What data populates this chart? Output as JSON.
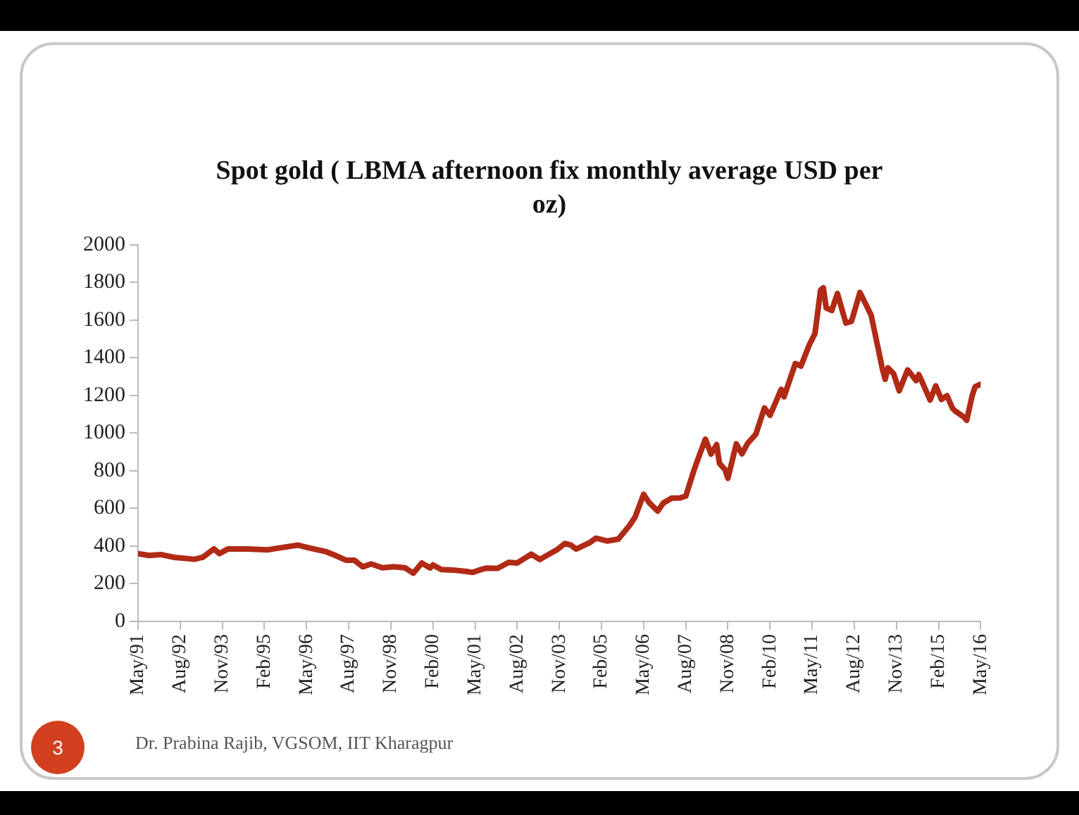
{
  "chart_data": {
    "type": "line",
    "title": "Spot gold ( LBMA afternoon fix  monthly average USD per oz)",
    "annotations": [
      "Dr. Prabina Rajib, VGSOM, IIT Kharagpur",
      "3"
    ],
    "x": [
      "1991-05",
      "1991-09",
      "1992-01",
      "1992-06",
      "1993-01",
      "1993-04",
      "1993-08",
      "1993-10",
      "1994-01",
      "1994-08",
      "1995-03",
      "1995-06",
      "1996-02",
      "1996-06",
      "1996-12",
      "1997-03",
      "1997-07",
      "1997-10",
      "1998-01",
      "1998-04",
      "1998-08",
      "1998-12",
      "1999-04",
      "1999-07",
      "1999-10",
      "2000-01",
      "2000-02",
      "2000-05",
      "2000-09",
      "2001-02",
      "2001-04",
      "2001-06",
      "2001-09",
      "2002-01",
      "2002-05",
      "2002-08",
      "2003-01",
      "2003-04",
      "2003-06",
      "2003-10",
      "2004-01",
      "2004-03",
      "2004-05",
      "2004-10",
      "2004-12",
      "2005-04",
      "2005-08",
      "2005-12",
      "2006-02",
      "2006-05",
      "2006-07",
      "2006-10",
      "2006-12",
      "2007-03",
      "2007-06",
      "2007-08",
      "2007-11",
      "2008-01",
      "2008-03",
      "2008-05",
      "2008-07",
      "2008-08",
      "2008-10",
      "2008-11",
      "2009-02",
      "2009-04",
      "2009-06",
      "2009-09",
      "2009-12",
      "2010-02",
      "2010-06",
      "2010-07",
      "2010-11",
      "2011-01",
      "2011-04",
      "2011-06",
      "2011-08",
      "2011-09",
      "2011-10",
      "2011-12",
      "2012-02",
      "2012-05",
      "2012-07",
      "2012-10",
      "2012-12",
      "2013-02",
      "2013-04",
      "2013-06",
      "2013-07",
      "2013-08",
      "2013-10",
      "2013-12",
      "2014-03",
      "2014-06",
      "2014-07",
      "2014-11",
      "2015-01",
      "2015-03",
      "2015-05",
      "2015-07",
      "2015-08",
      "2015-11",
      "2015-12",
      "2016-02",
      "2016-03",
      "2016-05"
    ],
    "series": [
      {
        "color": "#b02a16",
        "values": [
          360,
          350,
          355,
          340,
          330,
          340,
          385,
          360,
          385,
          385,
          380,
          387,
          405,
          390,
          370,
          352,
          325,
          325,
          290,
          305,
          285,
          290,
          285,
          256,
          310,
          284,
          300,
          275,
          273,
          265,
          260,
          270,
          283,
          282,
          314,
          310,
          357,
          329,
          346,
          379,
          414,
          406,
          384,
          420,
          442,
          427,
          437,
          510,
          555,
          675,
          630,
          586,
          629,
          655,
          656,
          665,
          806,
          889,
          968,
          889,
          939,
          839,
          806,
          760,
          943,
          890,
          945,
          996,
          1134,
          1095,
          1233,
          1193,
          1370,
          1356,
          1470,
          1529,
          1760,
          1772,
          1665,
          1652,
          1742,
          1585,
          1594,
          1747,
          1688,
          1627,
          1485,
          1342,
          1286,
          1347,
          1316,
          1225,
          1336,
          1279,
          1311,
          1176,
          1251,
          1179,
          1199,
          1131,
          1117,
          1086,
          1068,
          1200,
          1246,
          1260
        ]
      }
    ],
    "xlim": [
      "1991-05",
      "2016-05"
    ],
    "xticks": [
      {
        "value": "1991-05",
        "label": "May/91"
      },
      {
        "value": "1992-08",
        "label": "Aug/92"
      },
      {
        "value": "1993-11",
        "label": "Nov/93"
      },
      {
        "value": "1995-02",
        "label": "Feb/95"
      },
      {
        "value": "1996-05",
        "label": "May/96"
      },
      {
        "value": "1997-08",
        "label": "Aug/97"
      },
      {
        "value": "1998-11",
        "label": "Nov/98"
      },
      {
        "value": "2000-02",
        "label": "Feb/00"
      },
      {
        "value": "2001-05",
        "label": "May/01"
      },
      {
        "value": "2002-08",
        "label": "Aug/02"
      },
      {
        "value": "2003-11",
        "label": "Nov/03"
      },
      {
        "value": "2005-02",
        "label": "Feb/05"
      },
      {
        "value": "2006-05",
        "label": "May/06"
      },
      {
        "value": "2007-08",
        "label": "Aug/07"
      },
      {
        "value": "2008-11",
        "label": "Nov/08"
      },
      {
        "value": "2010-02",
        "label": "Feb/10"
      },
      {
        "value": "2011-05",
        "label": "May/11"
      },
      {
        "value": "2012-08",
        "label": "Aug/12"
      },
      {
        "value": "2013-11",
        "label": "Nov/13"
      },
      {
        "value": "2015-02",
        "label": "Feb/15"
      },
      {
        "value": "2016-05",
        "label": "May/16"
      }
    ],
    "ylim": [
      0,
      2000
    ],
    "yticks": [
      0,
      200,
      400,
      600,
      800,
      1000,
      1200,
      1400,
      1600,
      1800,
      2000
    ],
    "grid": false,
    "legend": false,
    "marker": "none",
    "line_style": "solid"
  }
}
